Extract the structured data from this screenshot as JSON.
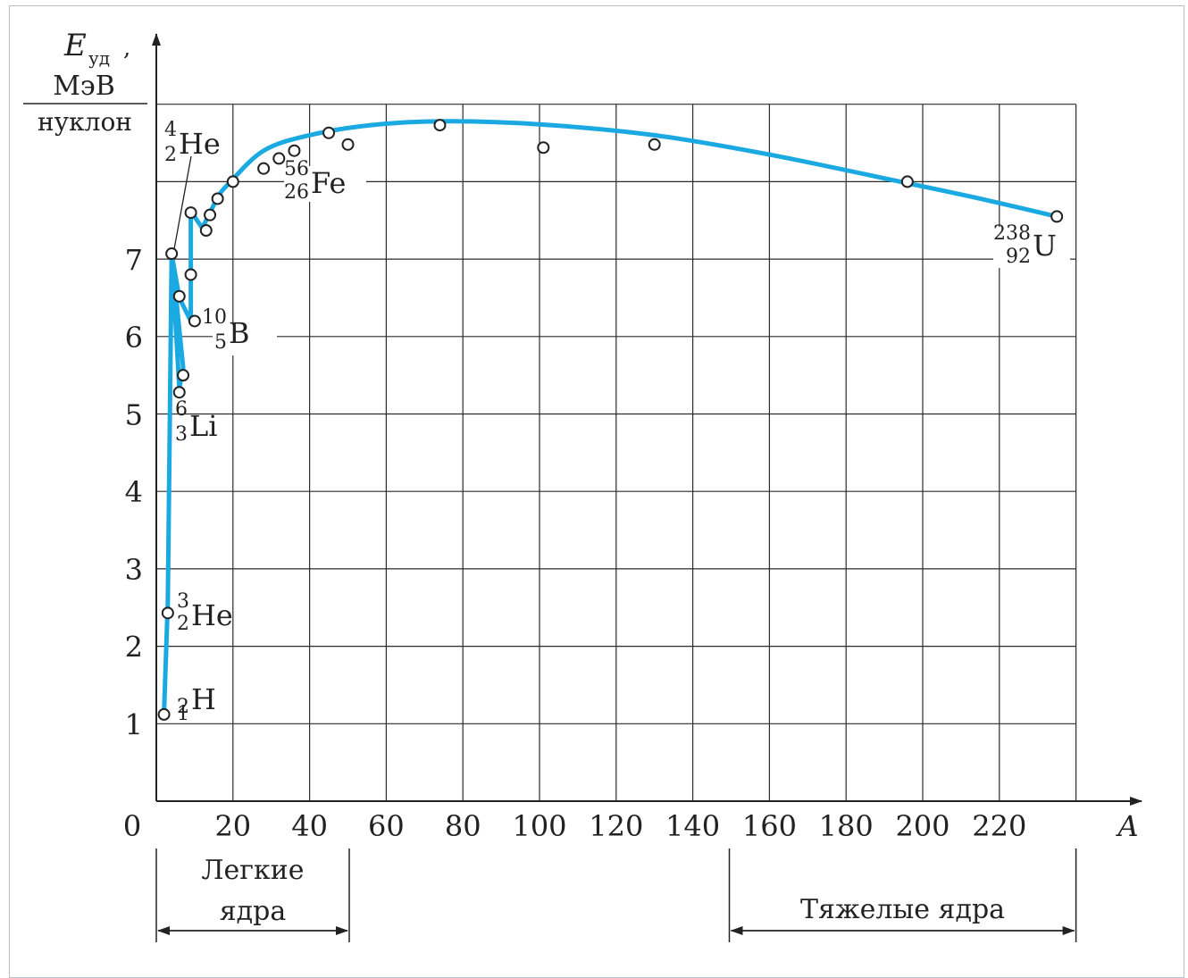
{
  "chart_data": {
    "type": "line",
    "title": "",
    "xlabel": "A",
    "ylabel": {
      "symbol": "E",
      "subscript": "уд",
      "unit_numerator": "МэВ",
      "unit_denominator": "нуклон"
    },
    "xlim": [
      0,
      240
    ],
    "ylim": [
      0,
      9
    ],
    "x_ticks": [
      20,
      40,
      60,
      80,
      100,
      120,
      140,
      160,
      180,
      200,
      220
    ],
    "y_ticks": [
      1,
      2,
      3,
      4,
      5,
      6,
      7
    ],
    "origin_label": "0",
    "grid": true,
    "curve_color": "#1ba9e1",
    "curve": [
      [
        2,
        1.12
      ],
      [
        3,
        2.57
      ],
      [
        4,
        7.07
      ],
      [
        6,
        5.33
      ],
      [
        7,
        5.6
      ],
      [
        4,
        7.07
      ],
      [
        6,
        6.5
      ],
      [
        9,
        6.2
      ],
      [
        9,
        7.5
      ],
      [
        9,
        7.62
      ],
      [
        12,
        7.4
      ],
      [
        14,
        7.6
      ],
      [
        16,
        7.8
      ],
      [
        19,
        7.98
      ],
      [
        28,
        8.4
      ],
      [
        40,
        8.6
      ],
      [
        56,
        8.73
      ],
      [
        75,
        8.78
      ],
      [
        100,
        8.74
      ],
      [
        130,
        8.6
      ],
      [
        160,
        8.35
      ],
      [
        196,
        7.98
      ],
      [
        215,
        7.78
      ],
      [
        235,
        7.55
      ]
    ],
    "points": [
      [
        2,
        1.12
      ],
      [
        3,
        2.43
      ],
      [
        4,
        7.07
      ],
      [
        6,
        5.28
      ],
      [
        7,
        5.5
      ],
      [
        6,
        6.52
      ],
      [
        9,
        6.8
      ],
      [
        10,
        6.2
      ],
      [
        9,
        7.6
      ],
      [
        13,
        7.37
      ],
      [
        14,
        7.57
      ],
      [
        16,
        7.78
      ],
      [
        20,
        8.0
      ],
      [
        28,
        8.17
      ],
      [
        32,
        8.3
      ],
      [
        36,
        8.4
      ],
      [
        45,
        8.63
      ],
      [
        50,
        8.48
      ],
      [
        74,
        8.73
      ],
      [
        101,
        8.44
      ],
      [
        130,
        8.48
      ],
      [
        196,
        8.0
      ],
      [
        235,
        7.55
      ]
    ],
    "annotations": [
      {
        "mass": "2",
        "charge": "1",
        "symbol": "H",
        "x": 2,
        "y": 1.12
      },
      {
        "mass": "3",
        "charge": "2",
        "symbol": "He",
        "x": 3,
        "y": 2.43
      },
      {
        "mass": "6",
        "charge": "3",
        "symbol": "Li",
        "x": 6,
        "y": 5.28
      },
      {
        "mass": "10",
        "charge": "5",
        "symbol": "B",
        "x": 10,
        "y": 6.2
      },
      {
        "mass": "4",
        "charge": "2",
        "symbol": "He",
        "x": 4,
        "y": 7.07
      },
      {
        "mass": "56",
        "charge": "26",
        "symbol": "Fe",
        "x": 56,
        "y": 8.8
      },
      {
        "mass": "238",
        "charge": "92",
        "symbol": "U",
        "x": 235,
        "y": 7.55
      }
    ],
    "ranges": [
      {
        "label_lines": [
          "Легкие",
          "ядра"
        ],
        "from": 0,
        "to": 50
      },
      {
        "label_lines": [
          "Тяжелые ядра"
        ],
        "from": 150,
        "to": 240
      }
    ]
  }
}
